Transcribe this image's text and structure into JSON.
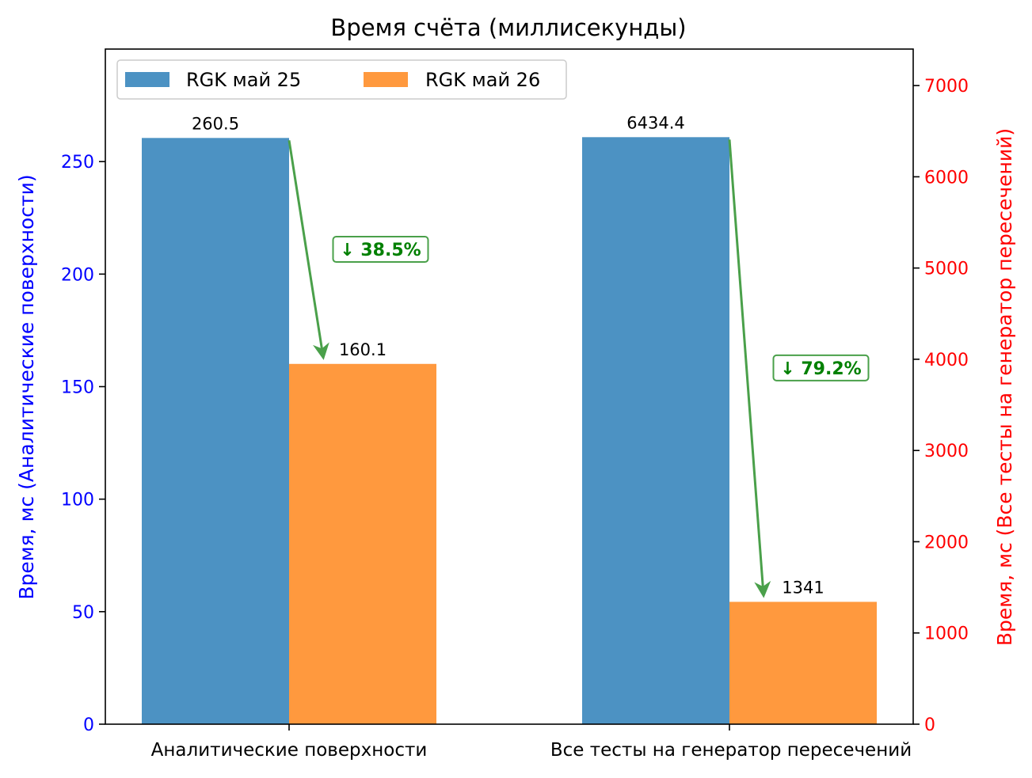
{
  "chart_data": {
    "type": "bar",
    "title": "Время счёта (миллисекунды)",
    "categories": [
      "Аналитические поверхности",
      "Все тесты на генератор пересечений"
    ],
    "series": [
      {
        "name": "RGK май 25",
        "color": "#4c92c3",
        "values": [
          260.5,
          6434.4
        ],
        "labels": [
          "260.5",
          "6434.4"
        ]
      },
      {
        "name": "RGK май 26",
        "color": "#ff993e",
        "values": [
          160.1,
          1341
        ],
        "labels": [
          "160.1",
          "1341"
        ]
      }
    ],
    "value_axis": [
      "left",
      "right"
    ],
    "left_axis": {
      "label": "Время, мс (Аналитические поверхности)",
      "color": "#0000ff",
      "range": [
        0,
        300
      ],
      "ticks": [
        0,
        50,
        100,
        150,
        200,
        250
      ]
    },
    "right_axis": {
      "label": "Время, мс (Все тесты на генератор пересечений)",
      "color": "#ff0000",
      "range": [
        0,
        7400
      ],
      "ticks": [
        0,
        1000,
        2000,
        3000,
        4000,
        5000,
        6000,
        7000
      ]
    },
    "annotations": [
      {
        "text": "↓ 38.5%",
        "color": "#008000"
      },
      {
        "text": "↓ 79.2%",
        "color": "#008000"
      }
    ],
    "arrow_color": "#4aa04a",
    "legend": {
      "position": "top-left",
      "columns": 2
    },
    "grid": false
  }
}
